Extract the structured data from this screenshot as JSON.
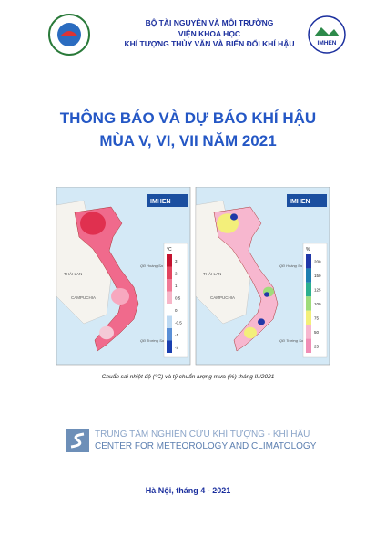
{
  "header": {
    "lines": [
      "BỘ TÀI NGUYÊN VÀ MÔI TRƯỜNG",
      "VIỆN KHOA HỌC",
      "KHÍ TƯỢNG THỦY VĂN VÀ BIẾN ĐỔI KHÍ HẬU"
    ],
    "logo_right": "IMHEN"
  },
  "title": {
    "line1": "THÔNG BÁO VÀ DỰ BÁO KHÍ HẬU",
    "line2": "MÙA V, VI, VII NĂM 2021"
  },
  "figure": {
    "maps": [
      {
        "banner": "IMHEN",
        "labels": [
          "THÁI LAN",
          "CAMPUCHIA",
          "QĐ Hoàng Sa",
          "QĐ Trường Sa"
        ],
        "legend_unit": "°C",
        "legend_values": [
          "3",
          "2",
          "1",
          "0.5",
          "0",
          "-0.5",
          "-1",
          "-2"
        ]
      },
      {
        "banner": "IMHEN",
        "labels": [
          "THÁI LAN",
          "CAMPUCHIA",
          "QĐ Hoàng Sa",
          "QĐ Trường Sa"
        ],
        "legend_unit": "%",
        "legend_values": [
          "200",
          "150",
          "125",
          "100",
          "75",
          "50",
          "25"
        ]
      }
    ],
    "caption": "Chuẩn sai nhiệt độ (°C) và tỷ chuẩn lượng mưa (%) tháng III/2021"
  },
  "footer": {
    "org_vi": "TRUNG TÂM NGHIÊN CỨU KHÍ TƯỢNG - KHÍ HẬU",
    "org_en": "CENTER FOR METEOROLOGY AND CLIMATOLOGY",
    "date": "Hà Nội, tháng 4 - 2021"
  }
}
